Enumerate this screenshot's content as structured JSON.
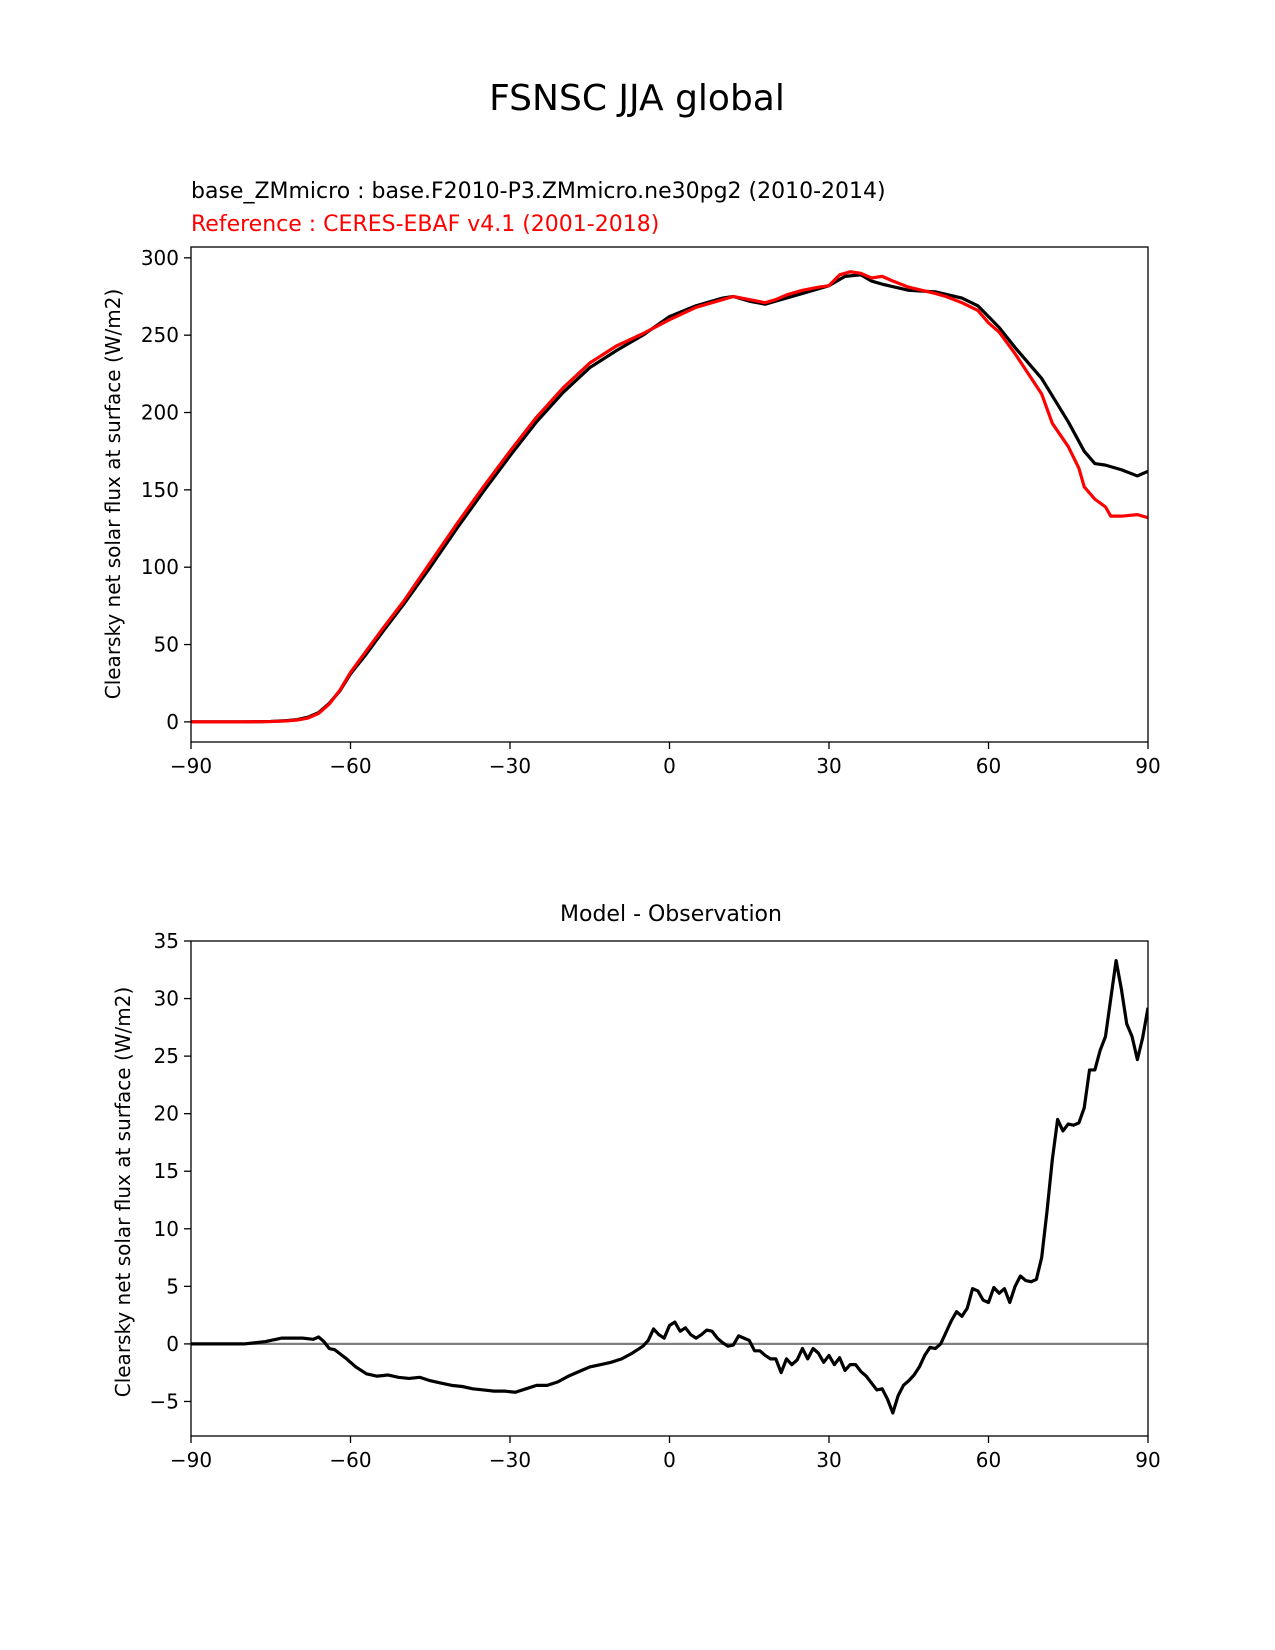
{
  "figure": {
    "title": "FSNSC JJA global"
  },
  "colors": {
    "test": "#000000",
    "reference": "#ff0000",
    "zero_line": "#808080"
  },
  "chart_data": [
    {
      "type": "line",
      "title_test": "base_ZMmicro : base.F2010-P3.ZMmicro.ne30pg2 (2010-2014)",
      "title_reference": "Reference : CERES-EBAF v4.1 (2001-2018)",
      "xlabel": "",
      "ylabel": "Clearsky net solar flux at surface (W/m2)",
      "xlim": [
        -90,
        90
      ],
      "ylim": [
        -13,
        307
      ],
      "xticks": [
        "−90",
        "−60",
        "−30",
        "0",
        "30",
        "60",
        "90"
      ],
      "xtick_values": [
        -90,
        -60,
        -30,
        0,
        30,
        60,
        90
      ],
      "yticks": [
        "0",
        "50",
        "100",
        "150",
        "200",
        "250",
        "300"
      ],
      "ytick_values": [
        0,
        50,
        100,
        150,
        200,
        250,
        300
      ],
      "grid": false,
      "series": [
        {
          "color": "#000000",
          "x": [
            -90,
            -85,
            -80,
            -75,
            -72,
            -70,
            -68,
            -66,
            -64,
            -62,
            -60,
            -57,
            -54,
            -50,
            -45,
            -40,
            -35,
            -30,
            -25,
            -20,
            -15,
            -10,
            -5,
            0,
            5,
            10,
            12,
            15,
            18,
            20,
            25,
            30,
            33,
            36,
            38,
            40,
            45,
            50,
            55,
            58,
            60,
            62,
            65,
            70,
            75,
            78,
            80,
            82,
            85,
            88,
            90
          ],
          "y": [
            0,
            0,
            0,
            0.3,
            0.8,
            1.5,
            3,
            6,
            12,
            20,
            31,
            44,
            58,
            76,
            100,
            125,
            149,
            172,
            194,
            213,
            229,
            240,
            250,
            262,
            269,
            274,
            275,
            272,
            270,
            272,
            277,
            282,
            288,
            289,
            285,
            283,
            279,
            278,
            274,
            269,
            262,
            255,
            242,
            222,
            194,
            175,
            167,
            166,
            163,
            159,
            162
          ]
        },
        {
          "color": "#ff0000",
          "x": [
            -90,
            -85,
            -80,
            -75,
            -72,
            -70,
            -68,
            -66,
            -64,
            -62,
            -60,
            -57,
            -54,
            -50,
            -45,
            -40,
            -35,
            -30,
            -25,
            -20,
            -15,
            -10,
            -5,
            0,
            5,
            10,
            12,
            15,
            18,
            20,
            22,
            25,
            28,
            30,
            32,
            34,
            36,
            38,
            40,
            42,
            45,
            50,
            52,
            55,
            58,
            60,
            62,
            65,
            70,
            72,
            75,
            77,
            78,
            80,
            82,
            83,
            85,
            88,
            90
          ],
          "y": [
            0,
            0,
            0,
            0.2,
            0.6,
            1.2,
            2.5,
            5.5,
            11.5,
            20.5,
            32,
            46,
            60,
            78,
            103,
            128,
            152,
            175,
            197,
            216,
            232,
            243,
            251,
            260,
            268,
            273,
            275,
            273,
            271,
            273,
            276,
            279,
            281,
            282,
            289,
            291,
            290,
            287,
            288,
            285,
            281,
            277,
            275,
            271,
            266,
            258,
            252,
            238,
            212,
            193,
            178,
            164,
            152,
            144,
            139,
            133,
            133,
            134,
            132
          ]
        }
      ]
    },
    {
      "type": "line",
      "title": "Model - Observation",
      "xlabel": "",
      "ylabel": "Clearsky net solar flux at surface (W/m2)",
      "xlim": [
        -90,
        90
      ],
      "ylim": [
        -8,
        35
      ],
      "xticks": [
        "−90",
        "−60",
        "−30",
        "0",
        "30",
        "60",
        "90"
      ],
      "xtick_values": [
        -90,
        -60,
        -30,
        0,
        30,
        60,
        90
      ],
      "yticks": [
        "−5",
        "0",
        "5",
        "10",
        "15",
        "20",
        "25",
        "30",
        "35"
      ],
      "ytick_values": [
        -5,
        0,
        5,
        10,
        15,
        20,
        25,
        30,
        35
      ],
      "grid": false,
      "zero_line": 0,
      "series": [
        {
          "color": "#000000",
          "x": [
            -90,
            -85,
            -80,
            -76,
            -73,
            -71,
            -69,
            -67,
            -66,
            -65,
            -64,
            -63,
            -61,
            -59,
            -57,
            -55,
            -53,
            -51,
            -49,
            -47,
            -45,
            -43,
            -41,
            -39,
            -37,
            -35,
            -33,
            -31,
            -29,
            -27,
            -25,
            -23,
            -21,
            -19,
            -17,
            -15,
            -13,
            -11,
            -9,
            -7,
            -5,
            -4,
            -3,
            -2,
            -1,
            0,
            1,
            2,
            3,
            4,
            5,
            6,
            7,
            8,
            9,
            10,
            11,
            12,
            13,
            14,
            15,
            16,
            17,
            18,
            19,
            20,
            21,
            22,
            23,
            24,
            25,
            26,
            27,
            28,
            29,
            30,
            31,
            32,
            33,
            34,
            35,
            36,
            37,
            38,
            39,
            40,
            41,
            42,
            43,
            44,
            45,
            46,
            47,
            48,
            49,
            50,
            51,
            52,
            53,
            54,
            55,
            56,
            57,
            58,
            59,
            60,
            61,
            62,
            63,
            64,
            65,
            66,
            67,
            68,
            69,
            70,
            71,
            72,
            73,
            74,
            75,
            76,
            77,
            78,
            79,
            80,
            81,
            82,
            83,
            84,
            85,
            86,
            87,
            88,
            89,
            90
          ],
          "y": [
            0,
            0,
            0,
            0.2,
            0.5,
            0.5,
            0.5,
            0.4,
            0.6,
            0.2,
            -0.4,
            -0.5,
            -1.2,
            -2,
            -2.6,
            -2.8,
            -2.7,
            -2.9,
            -3,
            -2.9,
            -3.2,
            -3.4,
            -3.6,
            -3.7,
            -3.9,
            -4,
            -4.1,
            -4.1,
            -4.2,
            -3.9,
            -3.6,
            -3.6,
            -3.3,
            -2.8,
            -2.4,
            -2,
            -1.8,
            -1.6,
            -1.3,
            -0.8,
            -0.2,
            0.3,
            1.3,
            0.8,
            0.5,
            1.6,
            1.9,
            1.1,
            1.4,
            0.8,
            0.5,
            0.8,
            1.2,
            1.1,
            0.5,
            0.1,
            -0.2,
            -0.1,
            0.7,
            0.5,
            0.3,
            -0.6,
            -0.6,
            -1,
            -1.3,
            -1.3,
            -2.5,
            -1.3,
            -1.8,
            -1.4,
            -0.4,
            -1.3,
            -0.4,
            -0.8,
            -1.6,
            -1,
            -1.8,
            -1.2,
            -2.3,
            -1.8,
            -1.8,
            -2.4,
            -2.8,
            -3.4,
            -4,
            -3.9,
            -4.8,
            -6,
            -4.5,
            -3.6,
            -3.2,
            -2.7,
            -2,
            -1,
            -0.3,
            -0.4,
            0,
            1,
            2,
            2.8,
            2.4,
            3.1,
            4.8,
            4.6,
            3.8,
            3.6,
            4.9,
            4.4,
            4.8,
            3.6,
            5,
            5.9,
            5.5,
            5.4,
            5.6,
            7.5,
            11.5,
            16,
            19.5,
            18.5,
            19.1,
            19,
            19.2,
            20.5,
            23.8,
            23.8,
            25.5,
            26.7,
            30,
            33.3,
            30.8,
            27.8,
            26.7,
            24.7,
            26.6,
            29.2
          ]
        }
      ]
    }
  ]
}
